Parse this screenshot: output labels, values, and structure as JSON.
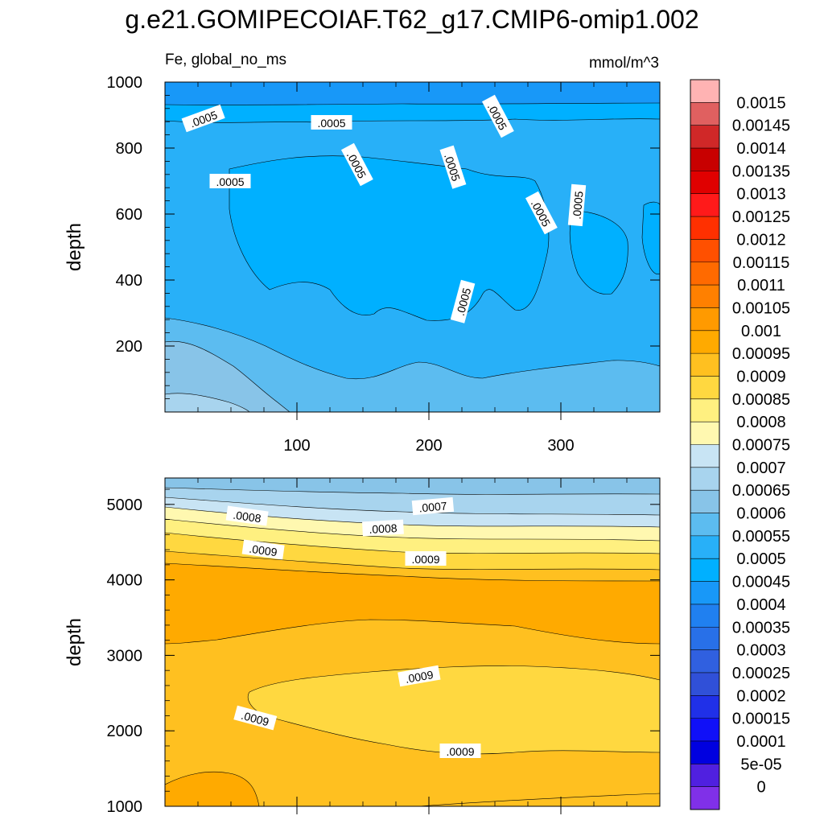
{
  "title": "g.e21.GOMIPECOIAF.T62_g17.CMIP6-omip1.002",
  "left_subtitle": "Fe, global_no_ms",
  "right_subtitle": "mmol/m^3",
  "colorbar": {
    "labels": [
      "0.0015",
      "0.00145",
      "0.0014",
      "0.00135",
      "0.0013",
      "0.00125",
      "0.0012",
      "0.00115",
      "0.0011",
      "0.00105",
      "0.001",
      "0.00095",
      "0.0009",
      "0.00085",
      "0.0008",
      "0.00075",
      "0.0007",
      "0.00065",
      "0.0006",
      "0.00055",
      "0.0005",
      "0.00045",
      "0.0004",
      "0.00035",
      "0.0003",
      "0.00025",
      "0.0002",
      "0.00015",
      "0.0001",
      "5e-05",
      "0"
    ],
    "colors": [
      "#ffb3b3",
      "#e06060",
      "#d02828",
      "#c80000",
      "#e00000",
      "#ff1a1a",
      "#ff3000",
      "#ff5000",
      "#ff6a00",
      "#ff8000",
      "#ff9a00",
      "#ffaa00",
      "#ffc020",
      "#ffd840",
      "#fff080",
      "#fff8b0",
      "#c8e4f4",
      "#a8d4ee",
      "#88c4e8",
      "#5cbcf0",
      "#28b0f8",
      "#00b0ff",
      "#1898f8",
      "#2080f0",
      "#2870e8",
      "#3060e0",
      "#3050d8",
      "#2030e8",
      "#1010f8",
      "#0000e0",
      "#5020e0",
      "#8030e8"
    ]
  },
  "chart_data": [
    {
      "type": "heatmap",
      "panel": "top",
      "ylabel": "depth",
      "ylim": [
        1000,
        0
      ],
      "xlim": [
        0,
        375
      ],
      "yticks": [
        200,
        400,
        600,
        800,
        1000
      ],
      "xticks": [
        100,
        200,
        300
      ],
      "fill_levels": [
        {
          "level": 0.00045,
          "color": "#00b0ff"
        },
        {
          "level": 0.0005,
          "color": "#28b0f8"
        },
        {
          "level": 0.00055,
          "color": "#5cbcf0"
        },
        {
          "level": 0.0006,
          "color": "#88c4e8"
        },
        {
          "level": 0.00065,
          "color": "#a8d4ee"
        }
      ],
      "contour_labels": [
        ".0005",
        ".0005",
        ".0005",
        ".0005",
        ".0005",
        ".0005",
        ".0005",
        ".0005",
        ".0005"
      ]
    },
    {
      "type": "heatmap",
      "panel": "bottom",
      "ylabel": "depth",
      "ylim": [
        5350,
        1000
      ],
      "xlim": [
        0,
        375
      ],
      "yticks": [
        1000,
        2000,
        3000,
        4000,
        5000
      ],
      "fill_levels": [
        {
          "level": 0.00065,
          "color": "#a8d4ee"
        },
        {
          "level": 0.0007,
          "color": "#c8e4f4"
        },
        {
          "level": 0.00075,
          "color": "#fff8b0"
        },
        {
          "level": 0.0008,
          "color": "#fff080"
        },
        {
          "level": 0.00085,
          "color": "#ffd840"
        },
        {
          "level": 0.0009,
          "color": "#ffc020"
        },
        {
          "level": 0.00095,
          "color": "#ffaa00"
        }
      ],
      "contour_labels": [
        ".0007",
        ".0008",
        ".0008",
        ".0009",
        ".0009",
        ".0009",
        ".0009",
        ".0009"
      ]
    }
  ]
}
